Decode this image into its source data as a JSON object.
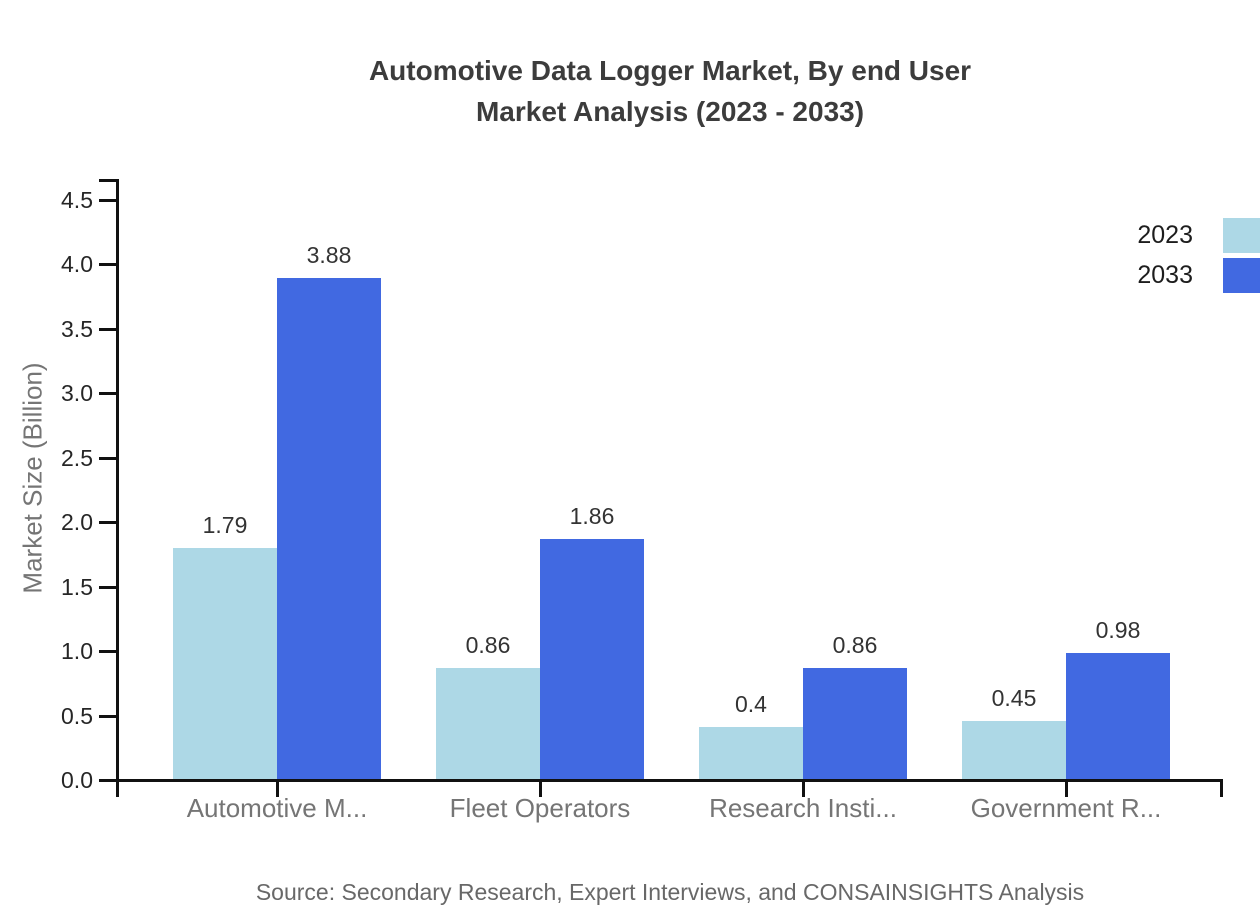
{
  "title": {
    "line1": "Automotive Data Logger Market, By end User",
    "line2": "Market Analysis (2023 - 2033)"
  },
  "source": "Source: Secondary Research, Expert Interviews, and CONSAINSIGHTS Analysis",
  "chart_data": {
    "type": "bar",
    "title": "Automotive Data Logger Market, By end User Market Analysis (2023 - 2033)",
    "categories": [
      "Automotive M...",
      "Fleet Operators",
      "Research Insti...",
      "Government R..."
    ],
    "series": [
      {
        "name": "2023",
        "color": "#ADD8E6",
        "values": [
          1.79,
          0.86,
          0.4,
          0.45
        ]
      },
      {
        "name": "2033",
        "color": "#4169E1",
        "values": [
          3.88,
          1.86,
          0.86,
          0.98
        ]
      }
    ],
    "xlabel": "",
    "ylabel": "Market Size (Billion)",
    "ylim": [
      0,
      4.65
    ],
    "yticks": [
      0.0,
      0.5,
      1.0,
      1.5,
      2.0,
      2.5,
      3.0,
      3.5,
      4.0,
      4.5
    ],
    "grid": false,
    "legend_position": "top-right",
    "value_labels_shown": true,
    "axis_color": "#111111",
    "text_colors": {
      "title": "#3c3c3c",
      "tick_labels": "#262626",
      "category_labels": "#757575",
      "value_labels": "#333333",
      "source": "#686868"
    }
  }
}
